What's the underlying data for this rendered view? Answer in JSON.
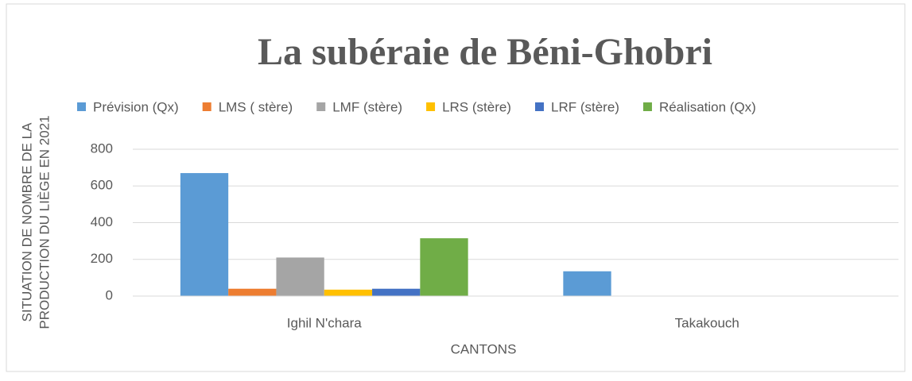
{
  "chart_data": {
    "type": "bar",
    "title": "La subéraie de Béni-Ghobri",
    "ylabel": [
      "SITUATION DE NOMBRE DE LA",
      "PRODUCTION DU LIÈGE EN 2021"
    ],
    "xlabel": "CANTONS",
    "categories": [
      "Ighil N'chara",
      "Takakouch"
    ],
    "series": [
      {
        "name": "Prévision (Qx)",
        "color": "#5b9bd5",
        "values": [
          670,
          135
        ]
      },
      {
        "name": "LMS ( stère)",
        "color": "#ed7d31",
        "values": [
          40,
          0
        ]
      },
      {
        "name": "LMF (stère)",
        "color": "#a5a5a5",
        "values": [
          210,
          0
        ]
      },
      {
        "name": "LRS (stère)",
        "color": "#ffc000",
        "values": [
          35,
          0
        ]
      },
      {
        "name": "LRF (stère)",
        "color": "#4472c4",
        "values": [
          40,
          0
        ]
      },
      {
        "name": "Réalisation (Qx)",
        "color": "#70ad47",
        "values": [
          315,
          0
        ]
      }
    ],
    "ylim": [
      0,
      800
    ],
    "yticks": [
      0,
      200,
      400,
      600,
      800
    ],
    "grid": true,
    "legend": "top"
  }
}
